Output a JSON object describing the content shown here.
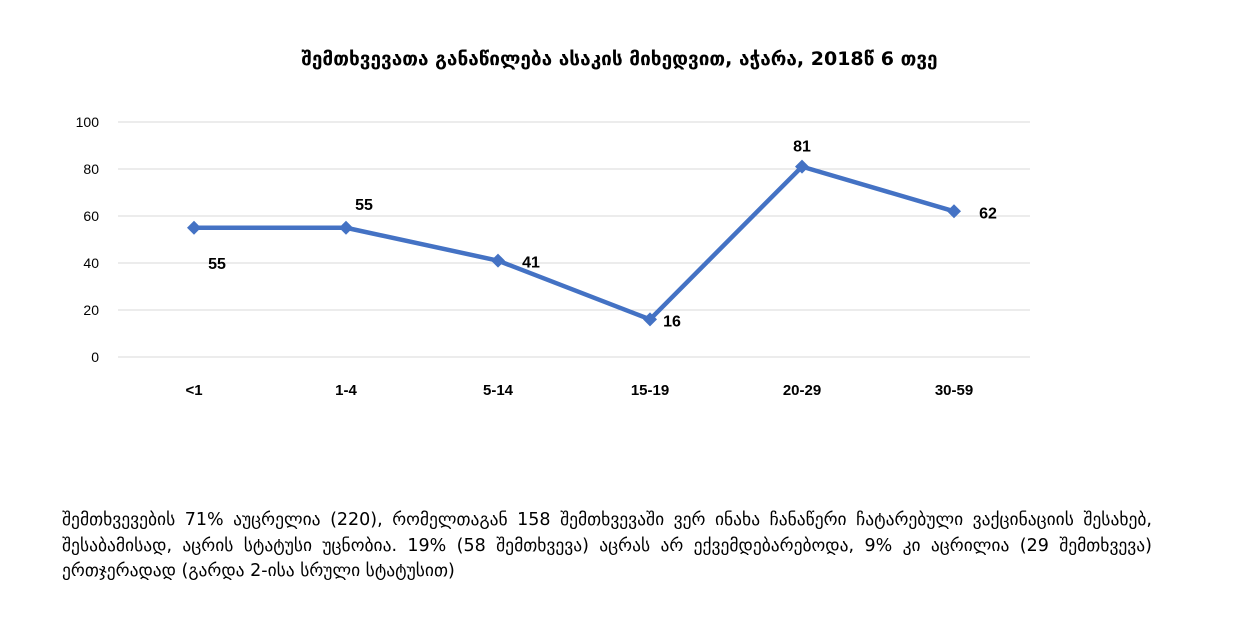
{
  "chart_data": {
    "type": "line",
    "title": "შემთხვევათა განაწილება ასაკის მიხედვით, აჭარა, 2018წ 6 თვე",
    "categories": [
      "<1",
      "1-4",
      "5-14",
      "15-19",
      "20-29",
      "30-59"
    ],
    "series": [
      {
        "values": [
          55,
          55,
          41,
          16,
          81,
          62
        ]
      }
    ],
    "data_labels": [
      "55",
      "55",
      "41",
      "16",
      "81",
      "62"
    ],
    "y_ticks": [
      "0",
      "20",
      "40",
      "60",
      "80",
      "100"
    ],
    "ylim": [
      0,
      100
    ],
    "xlabel": "",
    "ylabel": "",
    "grid": true,
    "line_color": "#4472C4",
    "grid_color": "#d9d9d9"
  },
  "paragraph": "შემთხვევების 71% აუცრელია (220), რომელთაგან 158 შემთხვევაში ვერ ინახა ჩანაწერი ჩატარებული ვაქცინაციის შესახებ, შესაბამისად, აცრის სტატუსი უცნობია. 19% (58 შემთხვევა) აცრას არ ექვემდებარებოდა, 9% კი აცრილია (29 შემთხვევა) ერთჯერადად (გარდა 2-ისა სრული სტატუსით)"
}
